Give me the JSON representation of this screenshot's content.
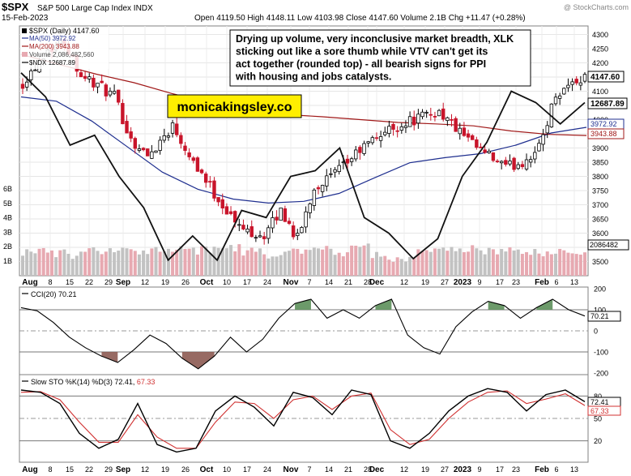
{
  "header": {
    "ticker": "$SPX",
    "name": "S&P 500 Large Cap Index",
    "exchange": "INDX",
    "date": "15-Feb-2023",
    "quote": "Open 4119.50  High 4148.11  Low 4103.98  Close 4147.60  Volume 2.1B  Chg +11.47 (+0.28%)",
    "watermark": "@ StockCharts.com"
  },
  "legend": {
    "ticker_line": "$SPX (Daily) 4147.60",
    "ma50": "MA(50) 3972.92",
    "ma200": "MA(200) 3943.88",
    "volume": "Volume 2,086,482,560",
    "ndx": "$NDX 12687.89"
  },
  "annotation": "Drying up volume, very inconclusive market breadth, XLK sticking out like a sore thumb while VTV can't get its act together (rounded top) - all bearish signs for PPI with housing and jobs catalysts.",
  "brand": "monicakingsley.co",
  "price_tags": {
    "close": "4147.60",
    "ndx": "12687.89",
    "ma50": "3972.92",
    "ma200": "3943.88",
    "volume": "2086482"
  },
  "cci_panel": {
    "label": "CCI(20) 70.21",
    "value_tag": "70.21"
  },
  "sto_panel": {
    "label_prefix": "Slow STO %K(14) %D(3) 72.41,",
    "label_d": "67.33",
    "k_tag": "72.41",
    "d_tag": "67.33"
  },
  "colors": {
    "up": "#000000",
    "down": "#c8142a",
    "ma50": "#1f2f8f",
    "ma200": "#a01818",
    "ndx": "#111111",
    "vol_up": "#c2c2c2",
    "vol_down": "#e7a9b1",
    "cci_fill_pos": "#5c8f5a",
    "cci_fill_neg": "#8c5a52",
    "sto_k": "#000000",
    "sto_d": "#d03030",
    "brand_bg": "#ffee00"
  },
  "chart_data": {
    "type": "candlestick",
    "series": [
      {
        "name": "$SPX",
        "values": "daily OHLC candles, Aug 2022 - 15 Feb 2023; last close 4147.60"
      },
      {
        "name": "MA(50)",
        "values": [
          4080,
          4065,
          3995,
          3905,
          3815,
          3755,
          3720,
          3706,
          3712,
          3740,
          3795,
          3848,
          3866,
          3880,
          3910,
          3953,
          3972.92
        ]
      },
      {
        "name": "MA(200)",
        "values": [
          4230,
          4195,
          4160,
          4130,
          4092,
          4060,
          4040,
          4018,
          4010,
          4000,
          3990,
          3985,
          3978,
          3960,
          3948,
          3943.88
        ]
      },
      {
        "name": "$NDX",
        "values": [
          4165,
          4080,
          3910,
          3945,
          3800,
          3690,
          3505,
          3590,
          3505,
          3680,
          3655,
          3800,
          3820,
          3900,
          3655,
          3600,
          3510,
          3580,
          3800,
          3920,
          4100,
          4060,
          3985,
          4060
        ]
      },
      {
        "name": "Volume",
        "values": [
          2.3,
          2.1,
          2.0,
          2.3,
          2.4,
          2.2,
          2.5,
          2.7,
          2.4,
          2.6,
          2.3,
          2.0,
          2.4,
          2.5,
          2.2,
          2.8,
          1.9,
          1.5,
          2.2,
          2.4,
          2.6,
          2.3,
          2.3,
          2.2,
          2.4,
          2.1
        ]
      }
    ],
    "x_tick_labels": [
      "Aug",
      "8",
      "15",
      "22",
      "29",
      "Sep",
      "12",
      "19",
      "26",
      "Oct",
      "10",
      "17",
      "24",
      "Nov",
      "7",
      "14",
      "21",
      "28",
      "Dec",
      "12",
      "19",
      "27",
      "2023",
      "9",
      "17",
      "23",
      "Feb",
      "6",
      "13"
    ],
    "price_axis": {
      "ylim": [
        3450,
        4330
      ],
      "ticks": [
        3500,
        3550,
        3600,
        3650,
        3700,
        3750,
        3800,
        3850,
        3900,
        3950,
        4000,
        4050,
        4100,
        4150,
        4200,
        4250,
        4300
      ]
    },
    "volume_axis": {
      "ticks": [
        "1B",
        "2B",
        "3B",
        "4B",
        "5B",
        "6B"
      ]
    },
    "cci": {
      "label": "CCI(20)",
      "last": 70.21,
      "ticks": [
        200,
        100,
        0,
        -100,
        -200
      ],
      "values": [
        110,
        95,
        40,
        -30,
        -80,
        -120,
        -150,
        -90,
        -20,
        -60,
        -130,
        -180,
        -120,
        -30,
        -100,
        -40,
        60,
        130,
        150,
        60,
        100,
        60,
        120,
        150,
        -20,
        -80,
        -110,
        20,
        90,
        140,
        120,
        60,
        110,
        150,
        100,
        70.21
      ]
    },
    "slow_sto": {
      "label": "Slow STO %K(14) %D(3)",
      "k_last": 72.41,
      "d_last": 67.33,
      "ticks": [
        80,
        50,
        20
      ],
      "k": [
        88,
        85,
        70,
        30,
        10,
        22,
        70,
        15,
        5,
        10,
        60,
        80,
        65,
        40,
        85,
        78,
        55,
        88,
        82,
        20,
        10,
        30,
        60,
        80,
        90,
        85,
        60,
        82,
        88,
        72.41
      ],
      "d": [
        85,
        86,
        75,
        45,
        18,
        18,
        55,
        25,
        10,
        10,
        45,
        72,
        70,
        50,
        75,
        80,
        62,
        80,
        84,
        35,
        15,
        22,
        50,
        72,
        85,
        87,
        70,
        76,
        83,
        67.33
      ]
    }
  }
}
